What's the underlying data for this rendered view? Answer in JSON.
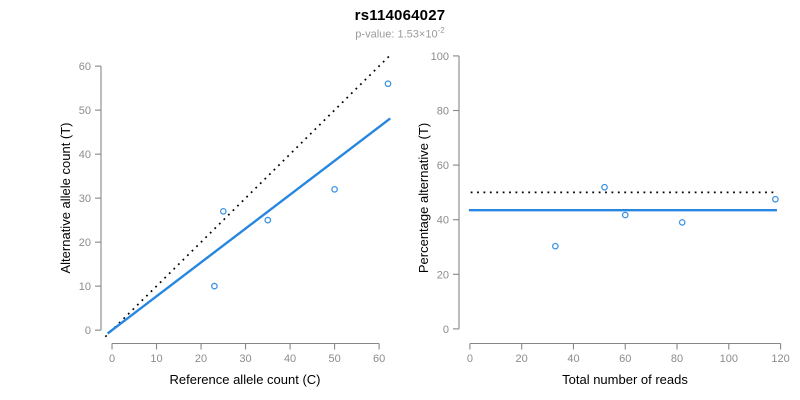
{
  "chart_data": {
    "type": "scatter",
    "title": "rs114064027",
    "subtitle_main": "p-value: 1.53×10",
    "subtitle_exp": "-2",
    "subtitle_full": "p-value: 1.53×10^-2",
    "colors": {
      "accent_blue_line": "#2787e0",
      "point_blue": "#3b92e4",
      "dotted_black": "#000000",
      "axis_gray": "#878787",
      "tick_label_gray": "#8c8c8c",
      "subtitle_gray": "#9b9b9b"
    },
    "plots": [
      {
        "type": "scatter",
        "xlabel": "Reference allele count (C)",
        "ylabel": "Alternative allele count (T)",
        "xticks": [
          0,
          10,
          20,
          30,
          40,
          50,
          60
        ],
        "yticks": [
          0,
          10,
          20,
          30,
          40,
          50,
          60
        ],
        "xlim": [
          -2.7,
          62.9
        ],
        "ylim": [
          -2.7,
          64.8
        ],
        "grid": false,
        "legend": false,
        "points": [
          [
            23,
            10
          ],
          [
            25,
            27
          ],
          [
            35,
            25
          ],
          [
            50,
            32
          ],
          [
            62,
            56
          ]
        ],
        "lines": [
          {
            "name": "identity-line",
            "style": "dotted",
            "color": "#000000",
            "x1": -1.5,
            "y1": -1.5,
            "x2": 62.9,
            "y2": 62.9
          },
          {
            "name": "regression-line",
            "style": "solid",
            "color": "#2787e0",
            "x1": -1.0,
            "y1": -0.77,
            "x2": 62.5,
            "y2": 48.1
          }
        ]
      },
      {
        "type": "scatter",
        "xlabel": "Total number of reads",
        "ylabel": "Percentage alternative (T)",
        "xticks": [
          0,
          20,
          40,
          60,
          80,
          100,
          120
        ],
        "yticks": [
          0,
          20,
          40,
          60,
          80,
          100
        ],
        "xlim": [
          -4.6,
          124.8
        ],
        "ylim": [
          -4.8,
          104
        ],
        "grid": false,
        "legend": false,
        "points": [
          [
            33,
            30.3
          ],
          [
            52,
            51.9
          ],
          [
            60,
            41.7
          ],
          [
            82,
            39.0
          ],
          [
            118,
            47.5
          ]
        ],
        "lines": [
          {
            "name": "expected-percentage-line",
            "style": "dotted",
            "color": "#000000",
            "x1": 0.3,
            "y1": 50,
            "x2": 117.5,
            "y2": 50
          },
          {
            "name": "mean-percentage-line",
            "style": "solid",
            "color": "#2787e0",
            "x1": -0.4,
            "y1": 43.5,
            "x2": 118.6,
            "y2": 43.5
          }
        ]
      }
    ]
  }
}
